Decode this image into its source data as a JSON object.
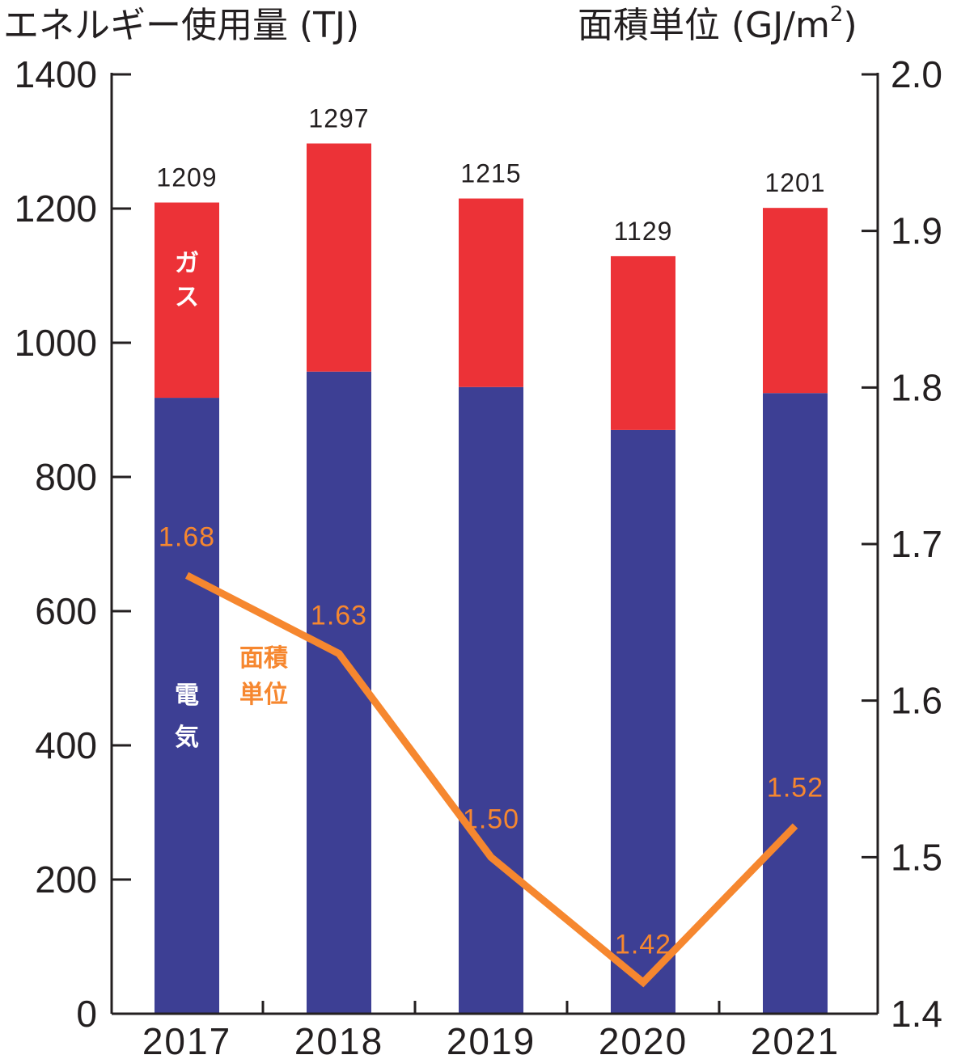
{
  "colors": {
    "electricity": "#3d3f94",
    "gas": "#ec3237",
    "intensity": "#f6872f",
    "axis": "#231f20"
  },
  "chart_data": {
    "type": "bar",
    "stacked": true,
    "categories": [
      "2017",
      "2018",
      "2019",
      "2020",
      "2021"
    ],
    "series": [
      {
        "name": "電気",
        "values": [
          918,
          957,
          934,
          870,
          925
        ]
      },
      {
        "name": "ガス",
        "values": [
          291,
          340,
          281,
          259,
          276
        ]
      }
    ],
    "totals": [
      1209,
      1297,
      1215,
      1129,
      1201
    ],
    "line_series": {
      "name": "面積単位",
      "name_lines": [
        "面積",
        "単位"
      ],
      "values": [
        1.68,
        1.63,
        1.5,
        1.42,
        1.52
      ],
      "labels": [
        "1.68",
        "1.63",
        "1.50",
        "1.42",
        "1.52"
      ],
      "axis": "right"
    },
    "ylabel": "エネルギー使用量 (TJ)",
    "ylabel_right_main": "面積単位 (GJ/m",
    "ylabel_right_sup": "2",
    "ylabel_right_close": ")",
    "ylim": [
      0,
      1400
    ],
    "yticks": [
      "0",
      "200",
      "400",
      "600",
      "800",
      "1000",
      "1200",
      "1400"
    ],
    "ylim_right": [
      1.4,
      2.0
    ],
    "yticks_right": [
      "1.4",
      "1.5",
      "1.6",
      "1.7",
      "1.8",
      "1.9",
      "2.0"
    ],
    "bar_series_labels": {
      "gas": [
        "ガ",
        "ス"
      ],
      "electricity": [
        "電",
        "気"
      ]
    },
    "grid": false,
    "legend": "none"
  }
}
